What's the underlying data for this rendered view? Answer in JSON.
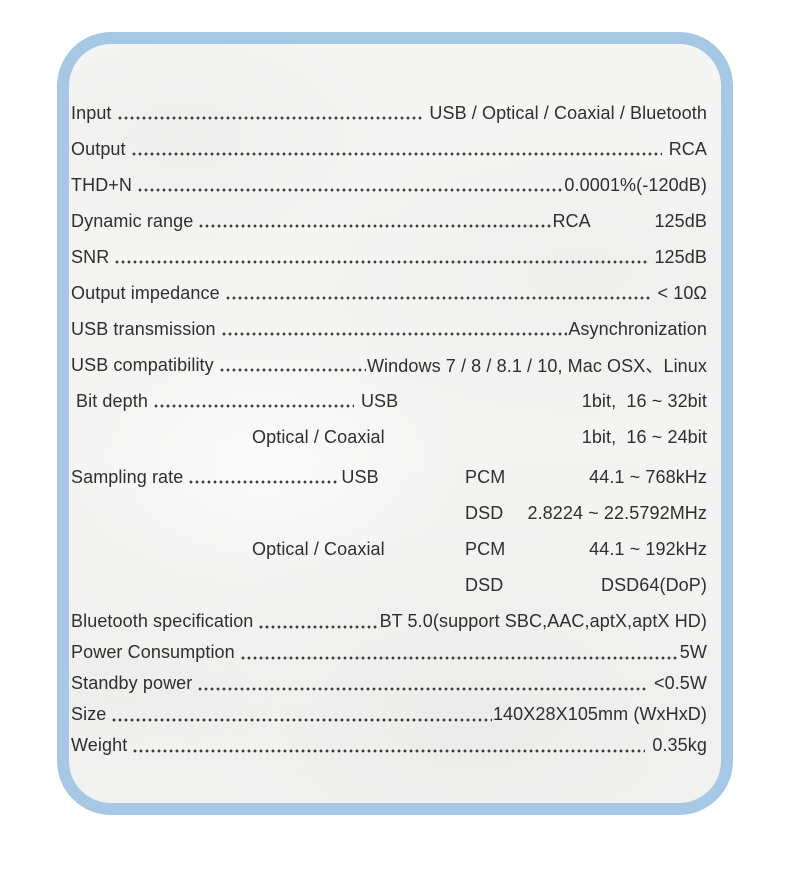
{
  "card": {
    "border_color": "#a7c8e4",
    "background_color": "#f3f3f2",
    "text_color": "#2f2f2f",
    "dot_leader_color": "#3c3c3c"
  },
  "specs": [
    {
      "label": "Input",
      "value": "USB / Optical / Coaxial / Bluetooth"
    },
    {
      "label": "Output",
      "value": "RCA"
    },
    {
      "label": "THD+N",
      "value": "0.0001%(-120dB)"
    },
    {
      "label": "Dynamic range",
      "mid": "RCA",
      "value": "125dB"
    },
    {
      "label": "SNR",
      "value": "125dB"
    },
    {
      "label": "Output impedance",
      "value": "< 10Ω"
    },
    {
      "label": "USB transmission",
      "value": "Asynchronization"
    },
    {
      "label": "USB compatibility",
      "value": "Windows 7 / 8 / 8.1 / 10, Mac OSX、Linux"
    },
    {
      "label": "Bit depth",
      "mid": "USB",
      "value": "1bit,  16 ~ 32bit"
    },
    {
      "label": "Optical / Coaxial",
      "value": "1bit,  16 ~ 24bit"
    },
    {
      "label": "Sampling rate",
      "mid": "USB",
      "col2": "PCM",
      "value": "44.1 ~ 768kHz"
    },
    {
      "col2": "DSD",
      "value": "2.8224 ~ 22.5792MHz"
    },
    {
      "label": "Optical / Coaxial",
      "col2": "PCM",
      "value": "44.1 ~ 192kHz"
    },
    {
      "col2": "DSD",
      "value": "DSD64(DoP)"
    },
    {
      "label": "Bluetooth specification",
      "value": "BT 5.0(support SBC,AAC,aptX,aptX HD)"
    },
    {
      "label": "Power Consumption",
      "value": "5W"
    },
    {
      "label": "Standby power",
      "value": "<0.5W"
    },
    {
      "label": "Size",
      "value": "140X28X105mm (WxHxD)"
    },
    {
      "label": "Weight",
      "value": "0.35kg"
    }
  ]
}
